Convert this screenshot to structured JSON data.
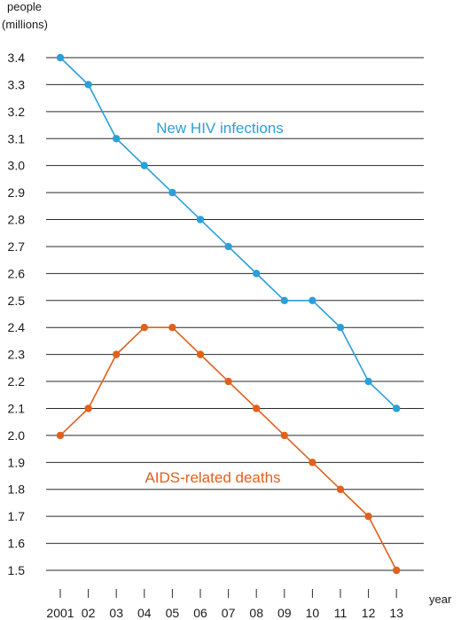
{
  "chart_data": {
    "type": "line",
    "ylabel": "people\n(millions)",
    "xlabel": "year",
    "ylim": [
      1.5,
      3.4
    ],
    "yticks": [
      "3.4",
      "3.3",
      "3.2",
      "3.1",
      "3.0",
      "2.9",
      "2.8",
      "2.7",
      "2.6",
      "2.5",
      "2.4",
      "2.3",
      "2.2",
      "2.1",
      "2.0",
      "1.9",
      "1.8",
      "1.7",
      "1.6",
      "1.5"
    ],
    "categories": [
      "2001",
      "02",
      "03",
      "04",
      "05",
      "06",
      "07",
      "08",
      "09",
      "10",
      "11",
      "12",
      "13"
    ],
    "grid": true,
    "series": [
      {
        "name": "New HIV infections",
        "color": "#2b9fd9",
        "values": [
          3.4,
          3.3,
          3.1,
          3.0,
          2.9,
          2.8,
          2.7,
          2.6,
          2.5,
          2.5,
          2.4,
          2.2,
          2.1
        ]
      },
      {
        "name": "AIDS-related deaths",
        "color": "#e0601c",
        "values": [
          2.0,
          2.1,
          2.3,
          2.4,
          2.4,
          2.3,
          2.2,
          2.1,
          2.0,
          1.9,
          1.8,
          1.7,
          1.5
        ]
      }
    ]
  }
}
